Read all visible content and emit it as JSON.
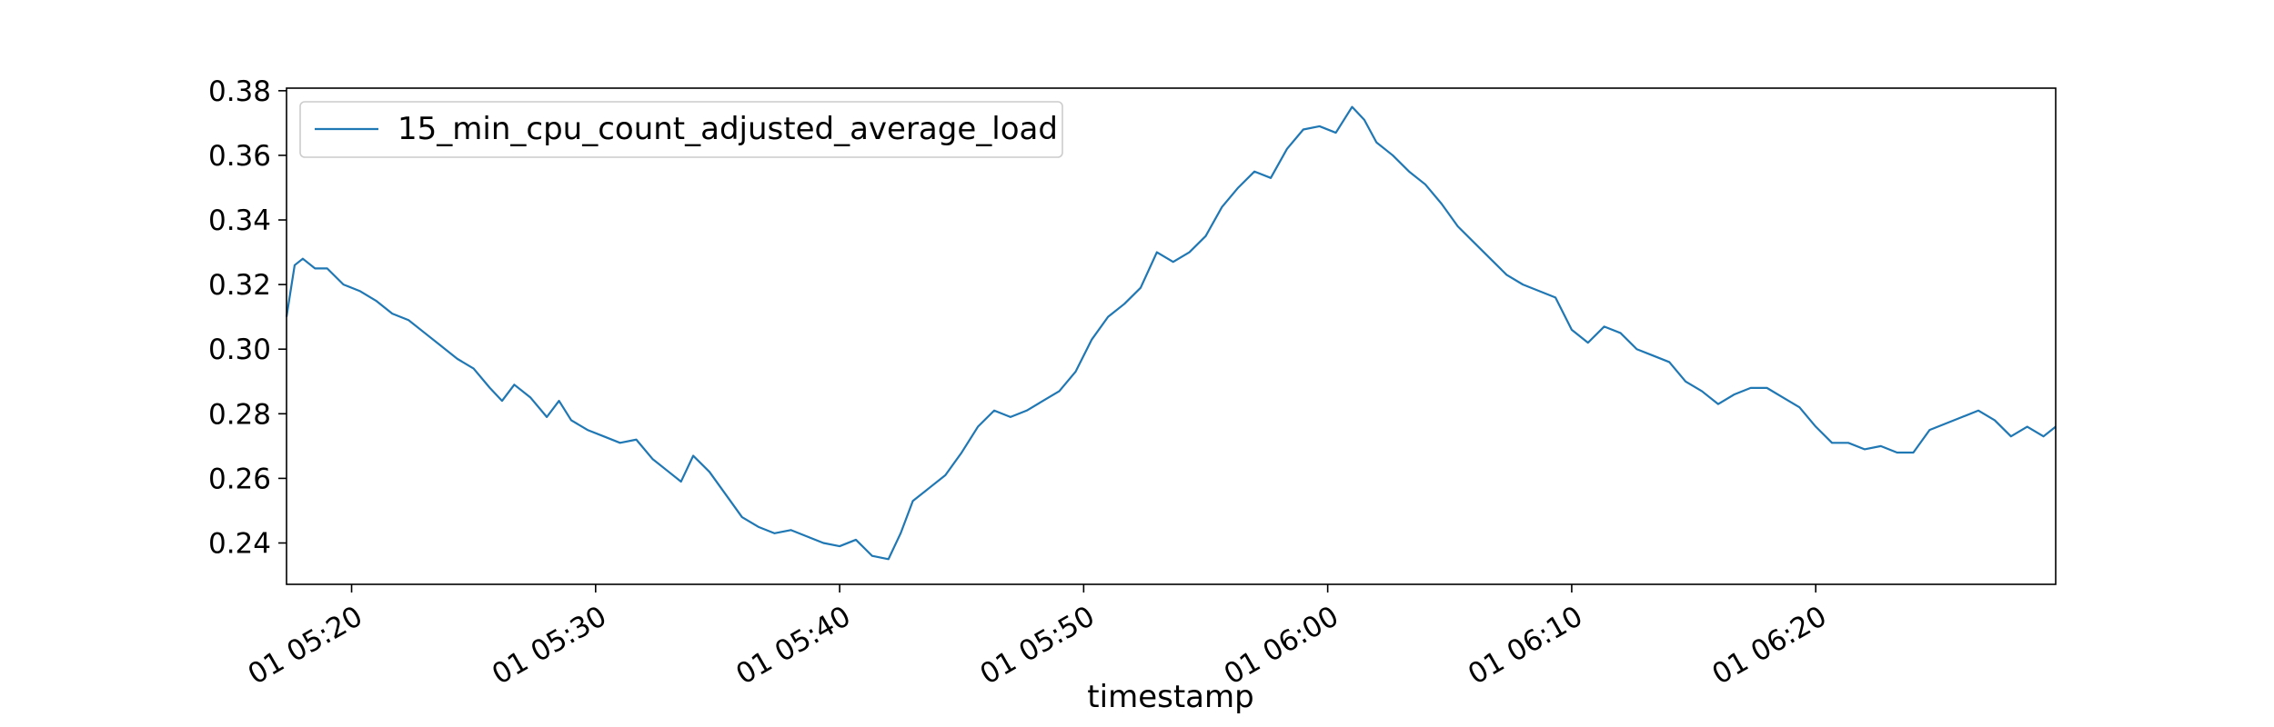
{
  "colors": {
    "series": "#1f77b4",
    "axes": "#000000",
    "legend_border": "#cccccc",
    "background": "#ffffff"
  },
  "chart_data": {
    "type": "line",
    "title": "",
    "xlabel": "timestamp",
    "ylabel": "",
    "grid": false,
    "legend_position": "upper-left",
    "xlim": [
      "01 05:17:20",
      "01 06:29:50"
    ],
    "ylim": [
      0.2272,
      0.3808
    ],
    "x_ticks": [
      "01 05:20",
      "01 05:30",
      "01 05:40",
      "01 05:50",
      "01 06:00",
      "01 06:10",
      "01 06:20"
    ],
    "y_ticks": [
      "0.24",
      "0.26",
      "0.28",
      "0.30",
      "0.32",
      "0.34",
      "0.36",
      "0.38"
    ],
    "series": [
      {
        "name": "15_min_cpu_count_adjusted_average_load",
        "x": [
          "01 05:17:20",
          "01 05:17:40",
          "01 05:18:00",
          "01 05:18:30",
          "01 05:19:00",
          "01 05:19:40",
          "01 05:20:20",
          "01 05:21:00",
          "01 05:21:40",
          "01 05:22:20",
          "01 05:23:00",
          "01 05:23:40",
          "01 05:24:20",
          "01 05:25:00",
          "01 05:25:40",
          "01 05:26:10",
          "01 05:26:40",
          "01 05:27:20",
          "01 05:28:00",
          "01 05:28:30",
          "01 05:29:00",
          "01 05:29:40",
          "01 05:30:20",
          "01 05:31:00",
          "01 05:31:40",
          "01 05:32:20",
          "01 05:33:00",
          "01 05:33:30",
          "01 05:34:00",
          "01 05:34:40",
          "01 05:35:20",
          "01 05:36:00",
          "01 05:36:40",
          "01 05:37:20",
          "01 05:38:00",
          "01 05:38:40",
          "01 05:39:20",
          "01 05:40:00",
          "01 05:40:40",
          "01 05:41:20",
          "01 05:42:00",
          "01 05:42:30",
          "01 05:43:00",
          "01 05:43:40",
          "01 05:44:20",
          "01 05:45:00",
          "01 05:45:40",
          "01 05:46:20",
          "01 05:47:00",
          "01 05:47:40",
          "01 05:48:20",
          "01 05:49:00",
          "01 05:49:40",
          "01 05:50:20",
          "01 05:51:00",
          "01 05:51:40",
          "01 05:52:20",
          "01 05:53:00",
          "01 05:53:40",
          "01 05:54:20",
          "01 05:55:00",
          "01 05:55:40",
          "01 05:56:20",
          "01 05:57:00",
          "01 05:57:40",
          "01 05:58:20",
          "01 05:59:00",
          "01 05:59:40",
          "01 06:00:20",
          "01 06:01:00",
          "01 06:01:30",
          "01 06:02:00",
          "01 06:02:40",
          "01 06:03:20",
          "01 06:04:00",
          "01 06:04:40",
          "01 06:05:20",
          "01 06:06:00",
          "01 06:06:40",
          "01 06:07:20",
          "01 06:08:00",
          "01 06:08:40",
          "01 06:09:20",
          "01 06:10:00",
          "01 06:10:40",
          "01 06:11:20",
          "01 06:12:00",
          "01 06:12:40",
          "01 06:13:20",
          "01 06:14:00",
          "01 06:14:40",
          "01 06:15:20",
          "01 06:16:00",
          "01 06:16:40",
          "01 06:17:20",
          "01 06:18:00",
          "01 06:18:40",
          "01 06:19:20",
          "01 06:20:00",
          "01 06:20:40",
          "01 06:21:20",
          "01 06:22:00",
          "01 06:22:40",
          "01 06:23:20",
          "01 06:24:00",
          "01 06:24:40",
          "01 06:25:20",
          "01 06:26:00",
          "01 06:26:40",
          "01 06:27:20",
          "01 06:28:00",
          "01 06:28:40",
          "01 06:29:20",
          "01 06:29:50"
        ],
        "y": [
          0.31,
          0.326,
          0.328,
          0.325,
          0.325,
          0.32,
          0.318,
          0.315,
          0.311,
          0.309,
          0.305,
          0.301,
          0.297,
          0.294,
          0.288,
          0.284,
          0.289,
          0.285,
          0.279,
          0.284,
          0.278,
          0.275,
          0.273,
          0.271,
          0.272,
          0.266,
          0.262,
          0.259,
          0.267,
          0.262,
          0.255,
          0.248,
          0.245,
          0.243,
          0.244,
          0.242,
          0.24,
          0.239,
          0.241,
          0.236,
          0.235,
          0.243,
          0.253,
          0.257,
          0.261,
          0.268,
          0.276,
          0.281,
          0.279,
          0.281,
          0.284,
          0.287,
          0.293,
          0.303,
          0.31,
          0.314,
          0.319,
          0.33,
          0.327,
          0.33,
          0.335,
          0.344,
          0.35,
          0.355,
          0.353,
          0.362,
          0.368,
          0.369,
          0.367,
          0.375,
          0.371,
          0.364,
          0.36,
          0.355,
          0.351,
          0.345,
          0.338,
          0.333,
          0.328,
          0.323,
          0.32,
          0.318,
          0.316,
          0.306,
          0.302,
          0.307,
          0.305,
          0.3,
          0.298,
          0.296,
          0.29,
          0.287,
          0.283,
          0.286,
          0.288,
          0.288,
          0.285,
          0.282,
          0.276,
          0.271,
          0.271,
          0.269,
          0.27,
          0.268,
          0.268,
          0.275,
          0.277,
          0.279,
          0.281,
          0.278,
          0.273,
          0.276,
          0.273,
          0.276
        ]
      }
    ]
  }
}
